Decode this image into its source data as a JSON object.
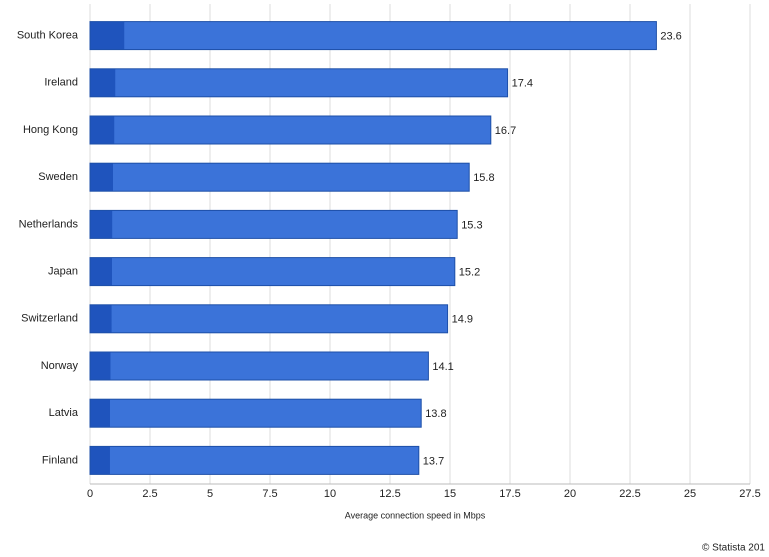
{
  "chart_data": {
    "type": "bar",
    "orientation": "horizontal",
    "categories": [
      "South Korea",
      "Ireland",
      "Hong Kong",
      "Sweden",
      "Netherlands",
      "Japan",
      "Switzerland",
      "Norway",
      "Latvia",
      "Finland"
    ],
    "values": [
      23.6,
      17.4,
      16.7,
      15.8,
      15.3,
      15.2,
      14.9,
      14.1,
      13.8,
      13.7
    ],
    "color": "#3b73d9",
    "xlim": [
      0,
      27.5
    ],
    "xticks": [
      0,
      2.5,
      5,
      7.5,
      10,
      12.5,
      15,
      17.5,
      20,
      22.5,
      25,
      27.5
    ],
    "grid": true,
    "xlabel": "Average connection speed in Mbps",
    "credit": "© Statista 201"
  }
}
